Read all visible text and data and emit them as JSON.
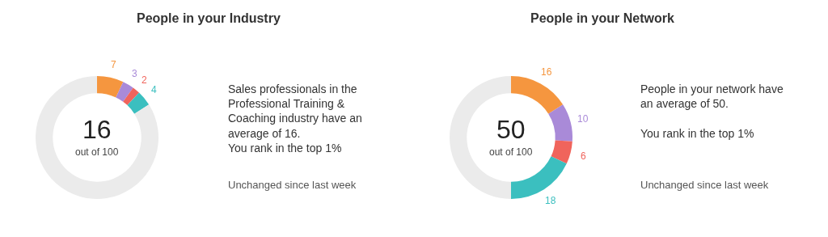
{
  "chart_data": [
    {
      "type": "donut",
      "title": "People in your Industry",
      "categories": [
        null,
        null,
        null,
        null,
        null
      ],
      "values": [
        7,
        3,
        2,
        4,
        84
      ],
      "colors": [
        "#f5963f",
        "#a98ad8",
        "#f0645c",
        "#3bbfbf",
        "#ebebeb"
      ],
      "value_labels": [
        "7",
        "3",
        "2",
        "4",
        null
      ],
      "annotations": [
        "16",
        "out of 100",
        "Sales professionals in the\nProfessional Training &\nCoaching industry have an\naverage of 16.\nYou rank in the top 1%",
        "Unchanged since last week"
      ]
    },
    {
      "type": "donut",
      "title": "People in your Network",
      "categories": [
        null,
        null,
        null,
        null,
        null
      ],
      "values": [
        16,
        10,
        6,
        18,
        50
      ],
      "colors": [
        "#f5963f",
        "#a98ad8",
        "#f0645c",
        "#3bbfbf",
        "#ebebeb"
      ],
      "value_labels": [
        "16",
        "10",
        "6",
        "18",
        null
      ],
      "annotations": [
        "50",
        "out of 100",
        "People in your network have\nan average of 50.\n\nYou rank in the top 1%",
        "Unchanged since last week"
      ]
    }
  ]
}
